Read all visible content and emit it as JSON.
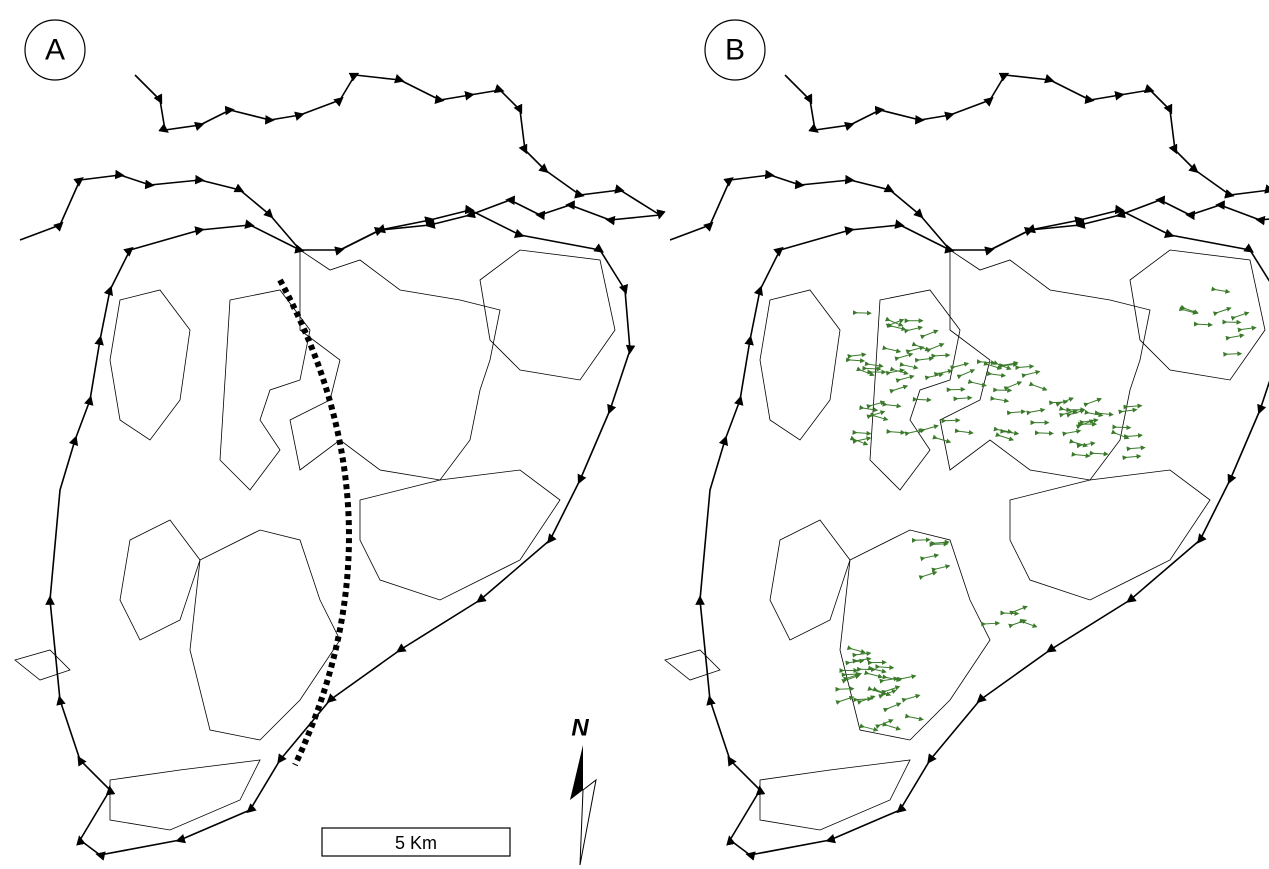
{
  "panels": [
    {
      "label": "A"
    },
    {
      "label": "B"
    }
  ],
  "scale_bar": {
    "label": "5 Km"
  },
  "north_arrow": {
    "label": "N"
  }
}
